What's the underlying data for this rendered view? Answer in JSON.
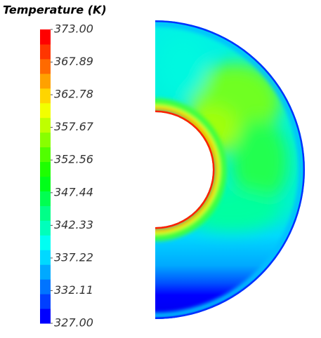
{
  "chart_data": {
    "type": "contour",
    "title": "Temperature (K)",
    "ylim": [
      327,
      373
    ],
    "yticks": [
      {
        "value": 327,
        "label": "327.00"
      },
      {
        "value": 332.11,
        "label": "332.11"
      },
      {
        "value": 337.22,
        "label": "337.22"
      },
      {
        "value": 342.33,
        "label": "342.33"
      },
      {
        "value": 347.44,
        "label": "347.44"
      },
      {
        "value": 352.56,
        "label": "352.56"
      },
      {
        "value": 357.67,
        "label": "357.67"
      },
      {
        "value": 362.78,
        "label": "362.78"
      },
      {
        "value": 367.89,
        "label": "367.89"
      },
      {
        "value": 373,
        "label": "373.00"
      }
    ],
    "colormap": [
      "#0000ff",
      "#003fff",
      "#0074ff",
      "#00a9ff",
      "#00d9ff",
      "#00fff2",
      "#00ffbb",
      "#00ff88",
      "#00ff51",
      "#00ff19",
      "#1eff00",
      "#51ff00",
      "#88ff00",
      "#bfff00",
      "#f2ff00",
      "#ffd500",
      "#ffa100",
      "#ff6a00",
      "#ff3500",
      "#ff0000"
    ]
  }
}
